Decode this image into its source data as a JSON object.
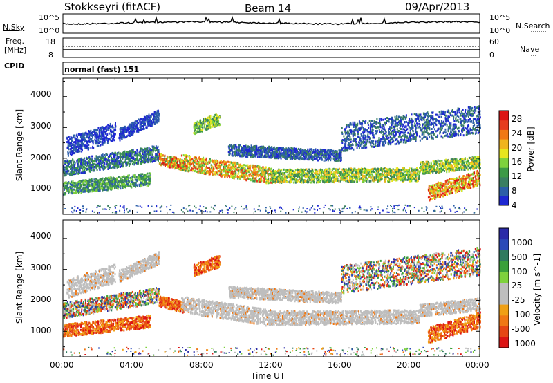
{
  "header": {
    "station": "Stokkseyri (fitACF)",
    "beam": "Beam 14",
    "date": "09/Apr/2013"
  },
  "top_strip": {
    "nsky_label": "N.Sky",
    "nsky_ticks": [
      "10^5",
      "10^0"
    ],
    "nsearch_label": "N.Search",
    "nsearch_ticks": [
      "10^5",
      "10^0"
    ],
    "freq_label_line1": "Freq.",
    "freq_label_line2": "[MHz]",
    "freq_ticks": [
      "18",
      "8"
    ],
    "nave_label": "Nave",
    "nave_ticks": [
      "60",
      "0"
    ],
    "cpid_label": "CPID",
    "cpid_value": "normal (fast) 151"
  },
  "colors": {
    "power": [
      "#1e28d2",
      "#2c5fa8",
      "#3a7f62",
      "#3c9a46",
      "#7ed23c",
      "#e6e61e",
      "#f0b41e",
      "#f07814",
      "#e63c1e",
      "#dc1414"
    ],
    "velocity": [
      "#2a2aa8",
      "#2a4ab8",
      "#2e7a5e",
      "#3aa03a",
      "#7ed23c",
      "#bebebe",
      "#bebebe",
      "#f0a014",
      "#f07814",
      "#e64614",
      "#dc1414"
    ]
  },
  "chart_data": [
    {
      "type": "heatmap",
      "title": "Power",
      "xlabel": "Time UT",
      "ylabel": "Slant Range [km]",
      "x_ticks": [
        "00:00",
        "04:00",
        "08:00",
        "12:00",
        "16:00",
        "20:00",
        "00:00"
      ],
      "y_ticks": [
        "4000",
        "3000",
        "2000",
        "1000"
      ],
      "xlim": [
        0,
        24
      ],
      "ylim": [
        180,
        4600
      ],
      "colorbar_label": "Power [dB]",
      "colorbar_ticks": [
        "28",
        "24",
        "20",
        "16",
        "12",
        "8",
        "4"
      ],
      "colorbar_range": [
        0,
        30
      ]
    },
    {
      "type": "heatmap",
      "title": "Velocity",
      "xlabel": "Time UT",
      "ylabel": "Slant Range [km]",
      "x_ticks": [
        "00:00",
        "04:00",
        "08:00",
        "12:00",
        "16:00",
        "20:00",
        "00:00"
      ],
      "y_ticks": [
        "4000",
        "3000",
        "2000",
        "1000"
      ],
      "xlim": [
        0,
        24
      ],
      "ylim": [
        180,
        4600
      ],
      "colorbar_label": "Velocity [m s^-1]",
      "colorbar_ticks": [
        "1000",
        "500",
        "100",
        "25",
        "-25",
        "-100",
        "-500",
        "-1000"
      ],
      "colorbar_range": [
        -1000,
        1000
      ]
    }
  ],
  "xlabel": "Time UT"
}
